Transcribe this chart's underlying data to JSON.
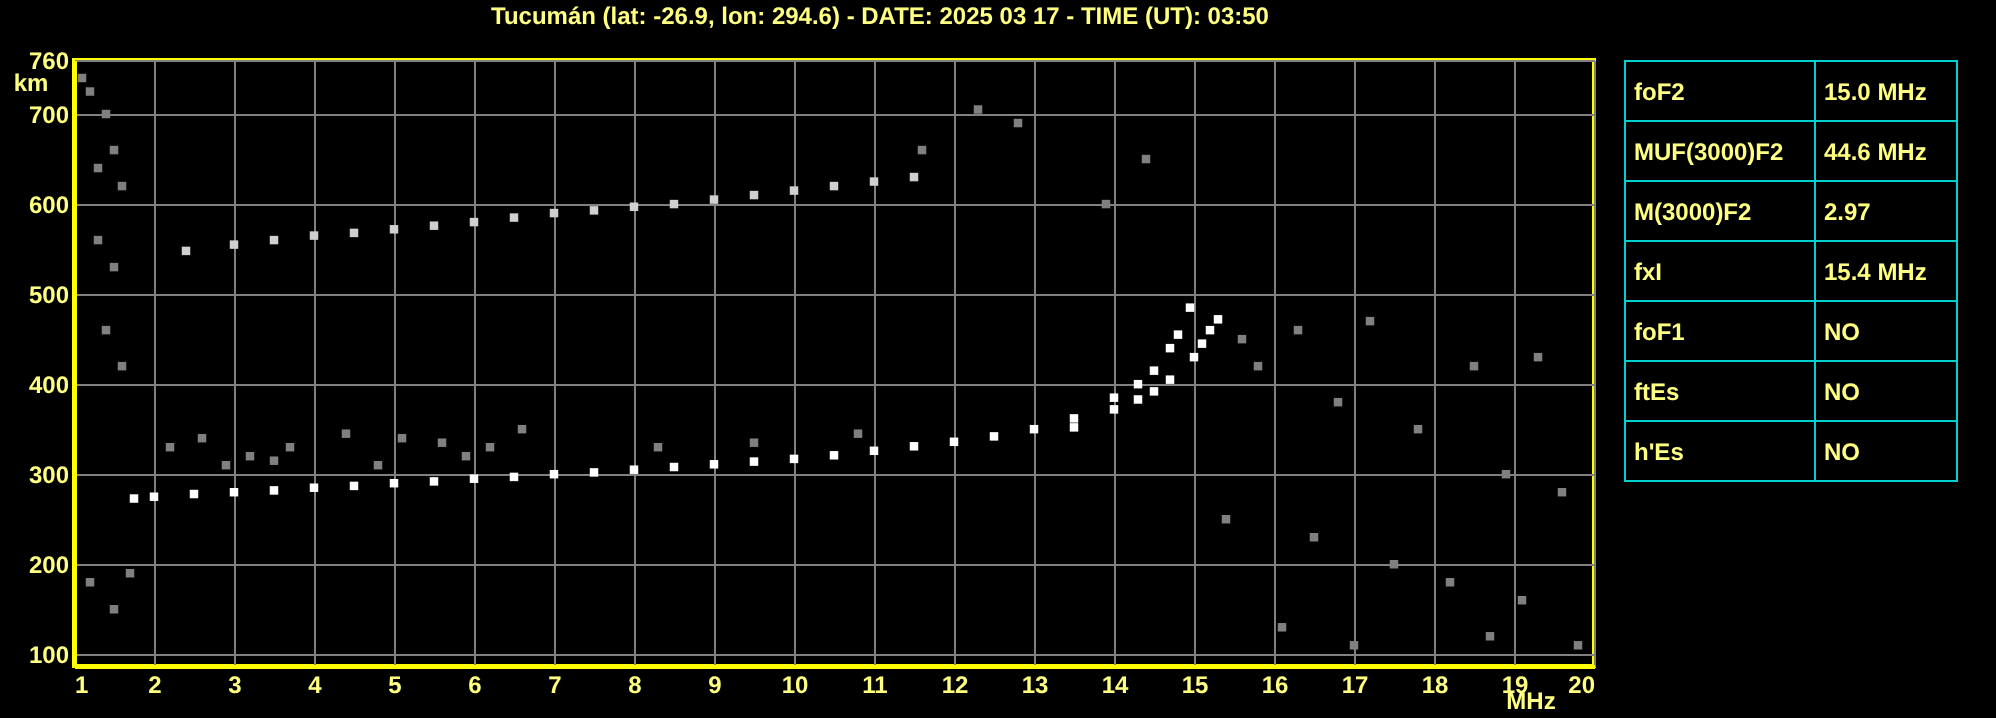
{
  "chart_data": [
    {
      "type": "scatter",
      "title": "Tucumán (lat: -26.9, lon: 294.6) - DATE: 2025 03 17 - TIME (UT): 03:50",
      "xlabel": "MHz",
      "ylabel": "km",
      "xlim": [
        1,
        20
      ],
      "ylim": [
        87,
        760
      ],
      "xticks": [
        1,
        2,
        3,
        4,
        5,
        6,
        7,
        8,
        9,
        10,
        11,
        12,
        13,
        14,
        15,
        16,
        17,
        18,
        19,
        20
      ],
      "yticks": [
        100,
        200,
        300,
        400,
        500,
        600,
        700,
        760
      ],
      "grid": true,
      "marker": "square",
      "series": [
        {
          "color": "#ffffff",
          "x": [
            1.75,
            2,
            2.5,
            3,
            3.5,
            4,
            4.5,
            5,
            5.5,
            6,
            6.5,
            7,
            7.5,
            8,
            8.5,
            9,
            9.5,
            10,
            10.5,
            11,
            11.5,
            12,
            12.5,
            13,
            13.5,
            14,
            14.3,
            14.5,
            14.7,
            14.8,
            14.95
          ],
          "values": [
            273,
            275,
            278,
            280,
            282,
            285,
            287,
            290,
            292,
            295,
            297,
            300,
            302,
            305,
            308,
            311,
            314,
            317,
            321,
            326,
            331,
            336,
            342,
            350,
            362,
            385,
            400,
            415,
            440,
            455,
            485
          ]
        },
        {
          "color": "#ffffff",
          "x": [
            13.5,
            14,
            14.3,
            14.5,
            14.7,
            15,
            15.1,
            15.2,
            15.3
          ],
          "values": [
            352,
            372,
            383,
            392,
            405,
            430,
            445,
            460,
            472
          ]
        },
        {
          "color": "#d0d0d0",
          "x": [
            2.4,
            3,
            3.5,
            4,
            4.5,
            5,
            5.5,
            6,
            6.5,
            7,
            7.5,
            8,
            8.5,
            9,
            9.5,
            10,
            10.5,
            11,
            11.5
          ],
          "values": [
            548,
            555,
            560,
            565,
            568,
            572,
            576,
            580,
            585,
            590,
            593,
            597,
            600,
            605,
            610,
            615,
            620,
            625,
            630
          ]
        },
        {
          "color": "#808080",
          "x": [
            1.1,
            1.2,
            1.3,
            1.4,
            1.5,
            1.6,
            1.3,
            1.5,
            1.4,
            1.6,
            1.2,
            1.5,
            1.7,
            2.2,
            2.6,
            3.2,
            3.7,
            4.4,
            5.1,
            5.6,
            6.2,
            6.6,
            2.9,
            3.5,
            4.8,
            5.9,
            8.3,
            9.5,
            10.8,
            12.3,
            13.9,
            15.6,
            15.8,
            16.3,
            17.2,
            18.5,
            19.3,
            16.8,
            17.8,
            18.9,
            19.6,
            15.4,
            16.5,
            17.5,
            18.2,
            19.1,
            16.1,
            17.0,
            18.7,
            19.8,
            12.8,
            14.4,
            11.6
          ],
          "values": [
            740,
            725,
            640,
            700,
            660,
            620,
            560,
            530,
            460,
            420,
            180,
            150,
            190,
            330,
            340,
            320,
            330,
            345,
            340,
            335,
            330,
            350,
            310,
            315,
            310,
            320,
            330,
            335,
            345,
            705,
            600,
            450,
            420,
            460,
            470,
            420,
            430,
            380,
            350,
            300,
            280,
            250,
            230,
            200,
            180,
            160,
            130,
            110,
            120,
            110,
            690,
            650,
            660
          ]
        }
      ]
    },
    {
      "type": "other",
      "annotations": [
        "foF2",
        "15.0 MHz",
        "MUF(3000)F2",
        "44.6 MHz",
        "M(3000)F2",
        "2.97",
        "fxI",
        "15.4 MHz",
        "foF1",
        "NO",
        "ftEs",
        "NO",
        "h'Es",
        "NO"
      ]
    }
  ]
}
